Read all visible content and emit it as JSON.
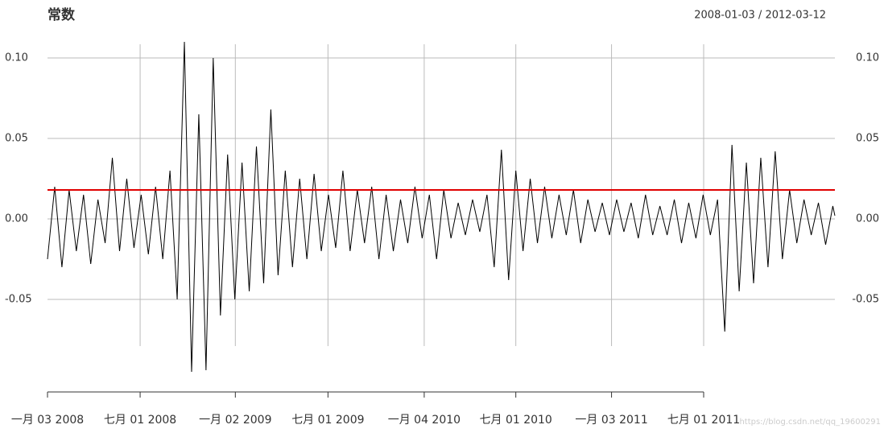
{
  "chart_data": {
    "type": "line",
    "title": "常数",
    "date_range": "2008-01-03 / 2012-03-12",
    "watermark": "https://blog.csdn.net/qq_19600291",
    "x": [
      "2008-01-03",
      "2008-01-17",
      "2008-01-31",
      "2008-02-14",
      "2008-02-28",
      "2008-03-13",
      "2008-03-27",
      "2008-04-10",
      "2008-04-24",
      "2008-05-08",
      "2008-05-22",
      "2008-06-05",
      "2008-06-19",
      "2008-07-03",
      "2008-07-17",
      "2008-07-31",
      "2008-08-14",
      "2008-08-28",
      "2008-09-11",
      "2008-09-25",
      "2008-10-09",
      "2008-10-23",
      "2008-11-06",
      "2008-11-20",
      "2008-12-04",
      "2008-12-18",
      "2009-01-01",
      "2009-01-15",
      "2009-01-29",
      "2009-02-12",
      "2009-02-26",
      "2009-03-12",
      "2009-03-26",
      "2009-04-09",
      "2009-04-23",
      "2009-05-07",
      "2009-05-21",
      "2009-06-04",
      "2009-06-18",
      "2009-07-02",
      "2009-07-16",
      "2009-07-30",
      "2009-08-13",
      "2009-08-27",
      "2009-09-10",
      "2009-09-24",
      "2009-10-08",
      "2009-10-22",
      "2009-11-05",
      "2009-11-19",
      "2009-12-03",
      "2009-12-17",
      "2009-12-31",
      "2010-01-14",
      "2010-01-28",
      "2010-02-11",
      "2010-02-25",
      "2010-03-11",
      "2010-03-25",
      "2010-04-08",
      "2010-04-22",
      "2010-05-06",
      "2010-05-20",
      "2010-06-03",
      "2010-06-17",
      "2010-07-01",
      "2010-07-15",
      "2010-07-29",
      "2010-08-12",
      "2010-08-26",
      "2010-09-09",
      "2010-09-23",
      "2010-10-07",
      "2010-10-21",
      "2010-11-04",
      "2010-11-18",
      "2010-12-02",
      "2010-12-16",
      "2010-12-30",
      "2011-01-13",
      "2011-01-27",
      "2011-02-10",
      "2011-02-24",
      "2011-03-10",
      "2011-03-24",
      "2011-04-07",
      "2011-04-21",
      "2011-05-05",
      "2011-05-19",
      "2011-06-02",
      "2011-06-16",
      "2011-06-30",
      "2011-07-14",
      "2011-07-28",
      "2011-08-11",
      "2011-08-25",
      "2011-09-08",
      "2011-09-22",
      "2011-10-06",
      "2011-10-20",
      "2011-11-03",
      "2011-11-17",
      "2011-12-01",
      "2011-12-15",
      "2011-12-29",
      "2012-01-12",
      "2012-01-26",
      "2012-02-09",
      "2012-02-23",
      "2012-03-08",
      "2012-03-12"
    ],
    "series": [
      {
        "color": "#000000",
        "values": [
          -0.025,
          0.02,
          -0.03,
          0.018,
          -0.02,
          0.015,
          -0.028,
          0.012,
          -0.015,
          0.038,
          -0.02,
          0.025,
          -0.018,
          0.015,
          -0.022,
          0.02,
          -0.025,
          0.03,
          -0.05,
          0.11,
          -0.095,
          0.065,
          -0.094,
          0.1,
          -0.06,
          0.04,
          -0.05,
          0.035,
          -0.045,
          0.045,
          -0.04,
          0.068,
          -0.035,
          0.03,
          -0.03,
          0.025,
          -0.025,
          0.028,
          -0.02,
          0.015,
          -0.018,
          0.03,
          -0.02,
          0.018,
          -0.015,
          0.02,
          -0.025,
          0.015,
          -0.02,
          0.012,
          -0.015,
          0.02,
          -0.012,
          0.015,
          -0.025,
          0.018,
          -0.012,
          0.01,
          -0.01,
          0.012,
          -0.008,
          0.015,
          -0.03,
          0.043,
          -0.038,
          0.03,
          -0.02,
          0.025,
          -0.015,
          0.02,
          -0.012,
          0.015,
          -0.01,
          0.018,
          -0.015,
          0.012,
          -0.008,
          0.01,
          -0.01,
          0.012,
          -0.008,
          0.01,
          -0.012,
          0.015,
          -0.01,
          0.008,
          -0.01,
          0.012,
          -0.015,
          0.01,
          -0.012,
          0.015,
          -0.01,
          0.012,
          -0.07,
          0.046,
          -0.045,
          0.035,
          -0.04,
          0.038,
          -0.03,
          0.042,
          -0.025,
          0.018,
          -0.015,
          0.012,
          -0.01,
          0.01,
          -0.016,
          0.008,
          0.002
        ]
      }
    ],
    "reference_line": 0.018,
    "reference_color": "#e00000",
    "xlim": [
      "2008-01-03",
      "2012-03-12"
    ],
    "xticks": [
      {
        "value": "2008-01-03",
        "label": "一月 03 2008"
      },
      {
        "value": "2008-07-01",
        "label": "七月 01 2008"
      },
      {
        "value": "2009-01-02",
        "label": "一月 02 2009"
      },
      {
        "value": "2009-07-01",
        "label": "七月 01 2009"
      },
      {
        "value": "2010-01-04",
        "label": "一月 04 2010"
      },
      {
        "value": "2010-07-01",
        "label": "七月 01 2010"
      },
      {
        "value": "2011-01-03",
        "label": "一月 03 2011"
      },
      {
        "value": "2011-07-01",
        "label": "七月 01 2011"
      }
    ],
    "ylim": [
      -0.0965,
      0.111
    ],
    "yticks": [
      {
        "value": 0.1,
        "label": "0.10"
      },
      0.05,
      {
        "value": 0,
        "label": "0.00"
      },
      -0.05
    ],
    "grid": true
  }
}
